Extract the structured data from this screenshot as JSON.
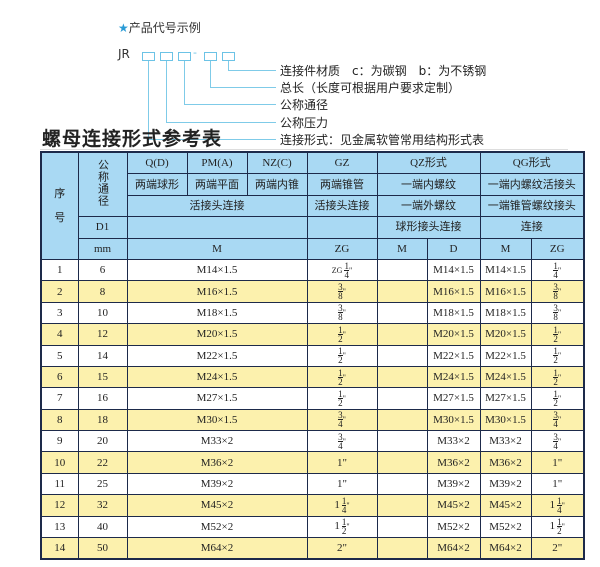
{
  "diagram": {
    "caption": "产品代号示例",
    "code_prefix": "JR",
    "dash": "-",
    "labels": [
      "连接件材质　c：为碳钢　b：为不锈钢",
      "总长（长度可根据用户要求定制）",
      "公称通径",
      "公称压力",
      "连接形式：见金属软管常用结构形式表"
    ]
  },
  "title": "螺母连接形式参考表",
  "header": {
    "seq": "序\n\n号",
    "dn": "公称通径",
    "d1": "D1",
    "mm": "mm",
    "qd": "Q(D)",
    "pm": "PM(A)",
    "nz": "NZ(C)",
    "gz": "GZ",
    "qz": "QZ形式",
    "qg": "QG形式",
    "qd2": "两端球形",
    "pm2": "两端平面",
    "nz2": "两端内锥",
    "gz2": "两端锥管",
    "qz2": "一端内螺纹",
    "qg2": "一端内螺纹活接头",
    "hj": "活接头连接",
    "gz3": "活接头连接",
    "qz3": "一端外螺纹",
    "qg3": "一端锥管螺纹接头",
    "qz4": "球形接头连接",
    "qg4": "连接",
    "m": "M",
    "zg": "ZG",
    "qzm": "M",
    "qzd": "D",
    "qgm": "M",
    "qgzg": "ZG"
  },
  "rows": [
    [
      "1",
      "6",
      "M14×1.5",
      "ZG|1|4|\"",
      "",
      "M14×1.5",
      "M14×1.5",
      "|1|4|\""
    ],
    [
      "2",
      "8",
      "M16×1.5",
      "|3|8|\"",
      "",
      "M16×1.5",
      "M16×1.5",
      "|3|8|\""
    ],
    [
      "3",
      "10",
      "M18×1.5",
      "|3|8|\"",
      "",
      "M18×1.5",
      "M18×1.5",
      "|3|8|\""
    ],
    [
      "4",
      "12",
      "M20×1.5",
      "|1|2|\"",
      "",
      "M20×1.5",
      "M20×1.5",
      "|1|2|\""
    ],
    [
      "5",
      "14",
      "M22×1.5",
      "|1|2|\"",
      "",
      "M22×1.5",
      "M22×1.5",
      "|1|2|\""
    ],
    [
      "6",
      "15",
      "M24×1.5",
      "|1|2|\"",
      "",
      "M24×1.5",
      "M24×1.5",
      "|1|2|\""
    ],
    [
      "7",
      "16",
      "M27×1.5",
      "|1|2|\"",
      "",
      "M27×1.5",
      "M27×1.5",
      "|1|2|\""
    ],
    [
      "8",
      "18",
      "M30×1.5",
      "|3|4|\"",
      "",
      "M30×1.5",
      "M30×1.5",
      "|3|4|\""
    ],
    [
      "9",
      "20",
      "M33×2",
      "|3|4|\"",
      "",
      "M33×2",
      "M33×2",
      "|3|4|\""
    ],
    [
      "10",
      "22",
      "M36×2",
      "1\"",
      "",
      "M36×2",
      "M36×2",
      "1\""
    ],
    [
      "11",
      "25",
      "M39×2",
      "1\"",
      "",
      "M39×2",
      "M39×2",
      "1\""
    ],
    [
      "12",
      "32",
      "M45×2",
      "1|1|4|\"",
      "",
      "M45×2",
      "M45×2",
      "1|1|4|\""
    ],
    [
      "13",
      "40",
      "M52×2",
      "1|1|2|\"",
      "",
      "M52×2",
      "M52×2",
      "1|1|2|\""
    ],
    [
      "14",
      "50",
      "M64×2",
      "2\"",
      "",
      "M64×2",
      "M64×2",
      "2\""
    ]
  ],
  "colors": {
    "header_bg": "#a9d9f3",
    "alt_row": "#fcf1ad",
    "border": "#1d2a4a",
    "accent": "#2a9bd6"
  }
}
